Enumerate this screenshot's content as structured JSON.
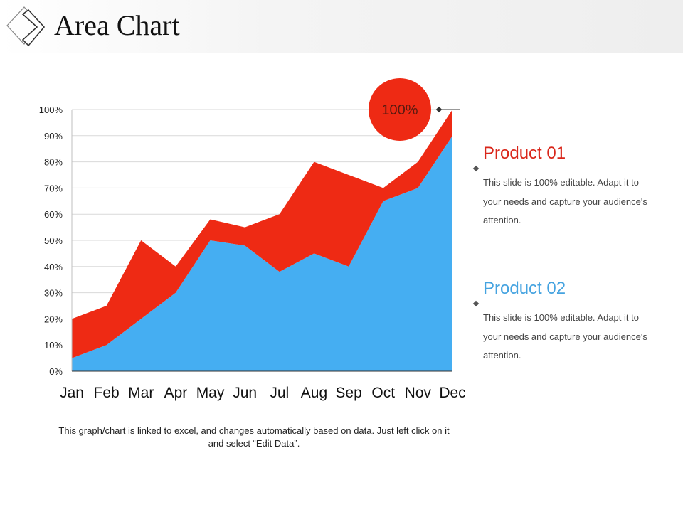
{
  "page": {
    "title": "Area Chart"
  },
  "chart_data": {
    "type": "area",
    "stacked": true,
    "categories": [
      "Jan",
      "Feb",
      "Mar",
      "Apr",
      "May",
      "Jun",
      "Jul",
      "Aug",
      "Sep",
      "Oct",
      "Nov",
      "Dec"
    ],
    "series": [
      {
        "name": "Product 02",
        "color": "#45aef2",
        "values": [
          5,
          10,
          20,
          30,
          50,
          48,
          38,
          45,
          40,
          65,
          70,
          90
        ]
      },
      {
        "name": "Product 01",
        "color": "#ee2a14",
        "values": [
          15,
          15,
          30,
          10,
          8,
          7,
          22,
          35,
          35,
          5,
          10,
          10
        ]
      }
    ],
    "ylim": [
      0,
      100
    ],
    "yticks": [
      "0%",
      "10%",
      "20%",
      "30%",
      "40%",
      "50%",
      "60%",
      "70%",
      "80%",
      "90%",
      "100%"
    ],
    "grid": true,
    "callout": {
      "label": "100%",
      "color": "#ee2a14"
    }
  },
  "products": [
    {
      "title": "Product 01",
      "color": "#d9261a",
      "description": "This slide is 100% editable. Adapt it to your needs and capture your audience's attention."
    },
    {
      "title": "Product 02",
      "color": "#45a3e0",
      "description": "This slide is 100% editable. Adapt it to your needs and capture your audience's attention."
    }
  ],
  "footnote": "This graph/chart is linked to excel, and changes automatically based on data. Just left click on it and select “Edit Data”."
}
